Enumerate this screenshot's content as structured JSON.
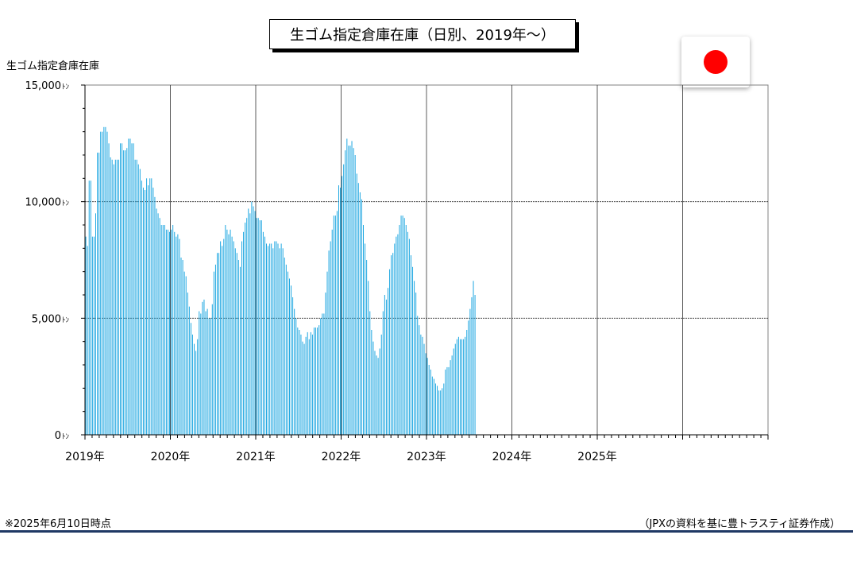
{
  "header": {
    "title": "生ゴム指定倉庫在庫（日別、2019年～）"
  },
  "flag": {
    "icon": "japan-flag-icon",
    "color": "#ff0000"
  },
  "footer": {
    "note": "※2025年6月10日時点",
    "source": "（JPXの資料を基に豊トラスティ証券作成）",
    "rule_color": "#1f3864"
  },
  "chart_data": {
    "type": "bar",
    "ylabel": "生ゴム指定倉庫在庫",
    "ylim": [
      0,
      15000
    ],
    "y_ticks": [
      "0ﾄﾝ",
      "5,000ﾄﾝ",
      "10,000ﾄﾝ",
      "15,000ﾄﾝ"
    ],
    "y_tick_values": [
      0,
      5000,
      10000,
      15000
    ],
    "x_labels": [
      "2019年",
      "2020年",
      "2021年",
      "2022年",
      "2023年",
      "2024年",
      "2025年"
    ],
    "x_range": [
      "2019-01",
      "2026-01"
    ],
    "grid": true,
    "bar_color": "#1ea7e1",
    "series": [
      {
        "values": [
          8500,
          8100,
          10900,
          10900,
          8500,
          8500,
          9500,
          12100,
          12100,
          13000,
          13000,
          13200,
          13200,
          13000,
          12500,
          11900,
          11800,
          11600,
          11800,
          11800,
          11800,
          12500,
          12500,
          12200,
          12200,
          12300,
          12700,
          12700,
          12500,
          12500,
          11800,
          11800,
          11600,
          11400,
          10900,
          10600,
          10500,
          11000,
          10700,
          11000,
          11000,
          10600,
          10200,
          9700,
          9500,
          9300,
          9000,
          9000,
          9000,
          8800,
          8800,
          8700,
          8800,
          9000,
          8700,
          8500,
          8600,
          8400,
          7600,
          7500,
          7000,
          6800,
          6100,
          5500,
          4800,
          4300,
          3900,
          3600,
          4100,
          5300,
          5200,
          5700,
          5800,
          5300,
          5400,
          5000,
          5000,
          5600,
          7000,
          7300,
          7800,
          7800,
          8300,
          8100,
          8400,
          9000,
          8800,
          8600,
          8800,
          8500,
          8300,
          8000,
          7800,
          7500,
          7200,
          8300,
          8700,
          9100,
          9300,
          9700,
          9500,
          10000,
          9800,
          9600,
          9300,
          9300,
          9200,
          9200,
          8700,
          8500,
          8200,
          8100,
          8200,
          8200,
          8000,
          8300,
          8300,
          8200,
          8000,
          8200,
          8000,
          7600,
          7300,
          7000,
          6700,
          6400,
          5900,
          5400,
          5000,
          4600,
          4500,
          4300,
          4000,
          3900,
          4200,
          4400,
          4100,
          4400,
          4300,
          4600,
          4600,
          4600,
          4700,
          5000,
          5200,
          5200,
          6100,
          7000,
          7900,
          8300,
          8800,
          9400,
          9400,
          9600,
          10700,
          10600,
          11100,
          11600,
          12200,
          12700,
          12400,
          12400,
          12600,
          12300,
          12000,
          11200,
          10800,
          10400,
          10100,
          9000,
          8200,
          7500,
          6600,
          5300,
          4500,
          4000,
          3600,
          3400,
          3300,
          3700,
          4300,
          5300,
          6000,
          5800,
          6300,
          7100,
          7700,
          7800,
          8200,
          8500,
          8600,
          9000,
          9400,
          9400,
          9300,
          9000,
          8700,
          8400,
          7700,
          7200,
          6600,
          6100,
          5100,
          4700,
          4300,
          4200,
          3900,
          3500,
          3300,
          3000,
          2800,
          2500,
          2400,
          2200,
          2100,
          1900,
          1900,
          2000,
          2200,
          2800,
          2900,
          2900,
          3200,
          3400,
          3700,
          3900,
          4100,
          4200,
          4100,
          4100,
          4100,
          4200,
          4500,
          4900,
          5400,
          5900,
          6600,
          6000
        ]
      }
    ]
  }
}
